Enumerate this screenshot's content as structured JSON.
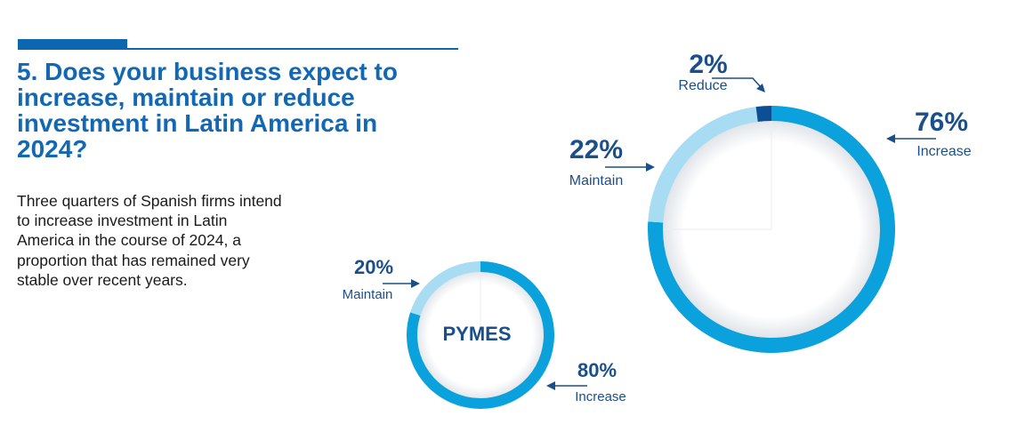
{
  "heading": {
    "number": "5.",
    "text": "Does your business expect to increase, maintain or reduce investment in Latin America in 2024?"
  },
  "description": "Three quarters of Spanish firms intend to increase investment in Latin America in the course of 2024, a proportion that has remained very stable over recent years.",
  "colors": {
    "increase": "#0aa1dc",
    "maintain": "#a8dcf3",
    "reduce": "#0d4f96",
    "label": "#1b4f8a",
    "accent": "#0d66b0"
  },
  "chart_data": [
    {
      "type": "pie",
      "variant": "donut",
      "title": "",
      "categories": [
        "Increase",
        "Maintain",
        "Reduce"
      ],
      "values": [
        76,
        22,
        2
      ],
      "value_labels": [
        "76%",
        "22%",
        "2%"
      ],
      "start": "top, clockwise from 12 o'clock, Increase first"
    },
    {
      "type": "pie",
      "variant": "donut",
      "title": "PYMES",
      "categories": [
        "Increase",
        "Maintain"
      ],
      "values": [
        80,
        20
      ],
      "value_labels": [
        "80%",
        "20%"
      ],
      "start": "top, clockwise from 12 o'clock, Increase first"
    }
  ]
}
